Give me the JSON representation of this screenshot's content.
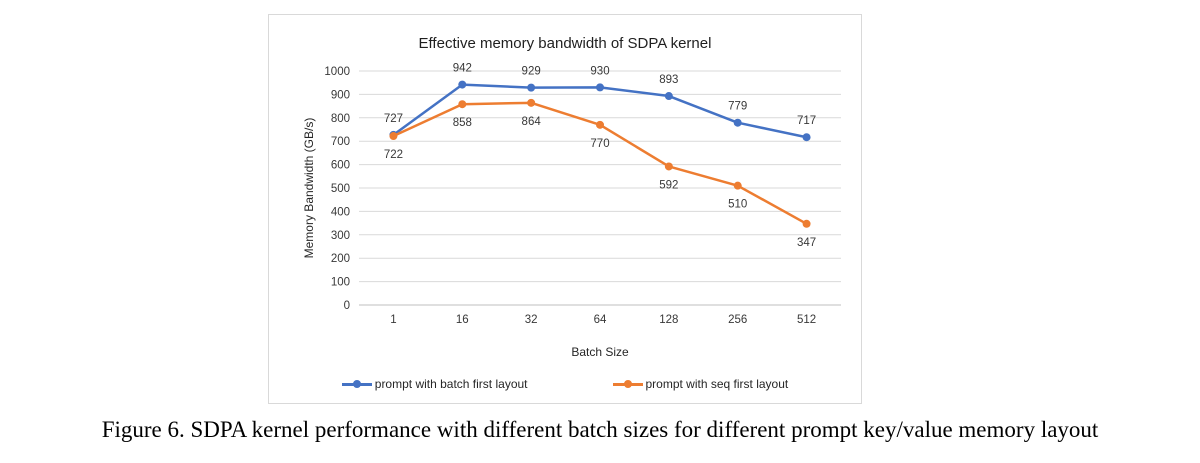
{
  "caption": "Figure 6. SDPA kernel performance with different batch sizes for different prompt key/value memory layout",
  "chart_data": {
    "type": "line",
    "title": "Effective memory bandwidth of SDPA kernel",
    "xlabel": "Batch Size",
    "ylabel": "Memory Bandwidth (GB/s)",
    "categories": [
      "1",
      "16",
      "32",
      "64",
      "128",
      "256",
      "512"
    ],
    "series": [
      {
        "name": "prompt with batch first layout",
        "color": "#4472C4",
        "values": [
          727,
          942,
          929,
          930,
          893,
          779,
          717
        ],
        "label_position": "above"
      },
      {
        "name": "prompt with seq first layout",
        "color": "#ED7D31",
        "values": [
          722,
          858,
          864,
          770,
          592,
          510,
          347
        ],
        "label_position": "below"
      }
    ],
    "ylim": [
      0,
      1000
    ],
    "ytick_step": 100,
    "grid": true,
    "legend_position": "bottom",
    "colors": {
      "gridline": "#d9d9d9",
      "axis_line": "#bfbfbf"
    }
  }
}
